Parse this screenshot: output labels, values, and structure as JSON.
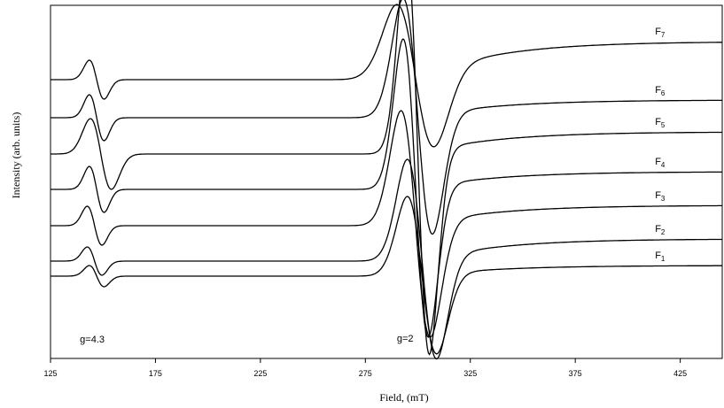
{
  "chart_data": {
    "type": "line",
    "title": "",
    "xlabel": "Field, (mT)",
    "ylabel": "Intensity (arb. units)",
    "xlim": [
      125,
      445
    ],
    "x_ticks": [
      125,
      175,
      225,
      275,
      325,
      375,
      425
    ],
    "y_ticks_shown": false,
    "grid": false,
    "legend": "none",
    "annotations": [
      {
        "text": "g=4.3",
        "x": 139,
        "y": -75
      },
      {
        "text": "g=2",
        "x": 290,
        "y": -74
      }
    ],
    "series": [
      {
        "name": "F",
        "sub": "7",
        "offset": 222,
        "baseline_right": 43,
        "features": [
          {
            "center": 147,
            "amp": 22,
            "width": 3.5
          },
          {
            "center": 299,
            "amp": 85,
            "width": 9
          }
        ]
      },
      {
        "name": "F",
        "sub": "6",
        "offset": 179,
        "baseline_right": 20,
        "features": [
          {
            "center": 147,
            "amp": 26,
            "width": 3.5
          },
          {
            "center": 300,
            "amp": 135,
            "width": 7
          }
        ]
      },
      {
        "name": "F",
        "sub": "5",
        "offset": 138,
        "baseline_right": 25,
        "features": [
          {
            "center": 149,
            "amp": 40,
            "width": 5
          },
          {
            "center": 300,
            "amp": 230,
            "width": 5.5
          }
        ]
      },
      {
        "name": "F",
        "sub": "4",
        "offset": 98,
        "baseline_right": 20,
        "features": [
          {
            "center": 147,
            "amp": 26,
            "width": 3.5
          },
          {
            "center": 299,
            "amp": 170,
            "width": 6
          }
        ]
      },
      {
        "name": "F",
        "sub": "3",
        "offset": 57,
        "baseline_right": 23,
        "features": [
          {
            "center": 146,
            "amp": 22,
            "width": 3.5
          },
          {
            "center": 299,
            "amp": 130,
            "width": 7
          }
        ]
      },
      {
        "name": "F",
        "sub": "2",
        "offset": 17,
        "baseline_right": 25,
        "features": [
          {
            "center": 146,
            "amp": 16,
            "width": 3.5
          },
          {
            "center": 302,
            "amp": 115,
            "width": 7
          }
        ]
      },
      {
        "name": "F",
        "sub": "1",
        "offset": 0,
        "baseline_right": 12,
        "features": [
          {
            "center": 147,
            "amp": 12,
            "width": 3.5
          },
          {
            "center": 302,
            "amp": 90,
            "width": 7
          }
        ]
      }
    ]
  }
}
